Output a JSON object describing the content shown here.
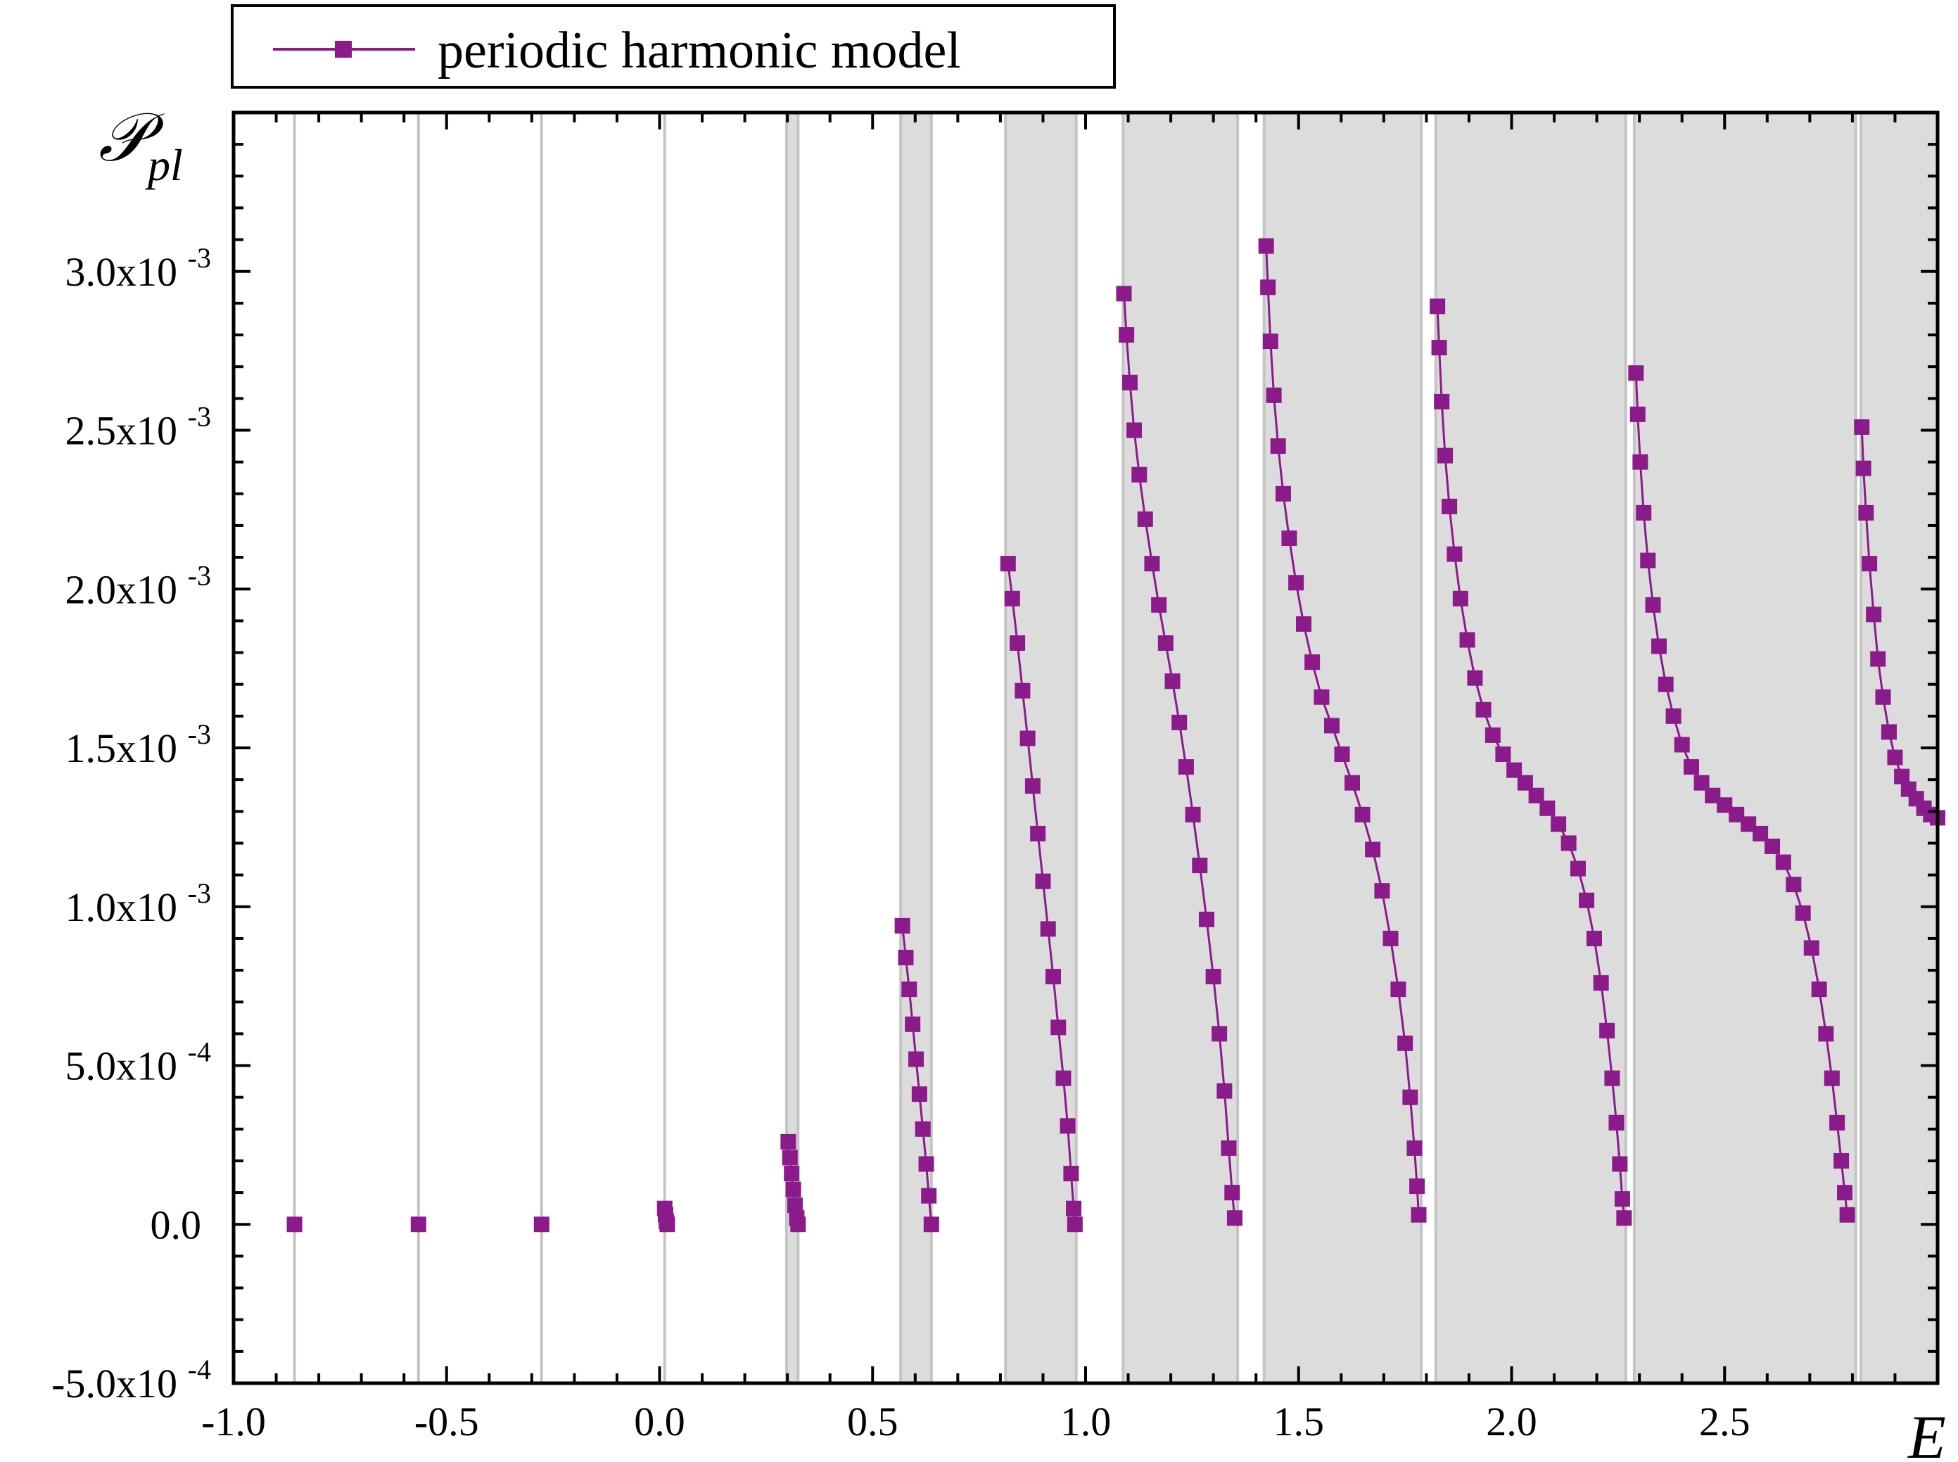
{
  "chart_data": {
    "type": "scatter",
    "title": "",
    "xlabel": "E",
    "ylabel": "𝒫",
    "ylabel_subscript": "pl",
    "xlim": [
      -1.0,
      3.0
    ],
    "ylim": [
      -0.0005,
      0.0035
    ],
    "grid": false,
    "legend_position": "top-left",
    "x_ticks": [
      {
        "v": -1.0,
        "label": "-1.0"
      },
      {
        "v": -0.5,
        "label": "-0.5"
      },
      {
        "v": 0.0,
        "label": "0.0"
      },
      {
        "v": 0.5,
        "label": "0.5"
      },
      {
        "v": 1.0,
        "label": "1.0"
      },
      {
        "v": 1.5,
        "label": "1.5"
      },
      {
        "v": 2.0,
        "label": "2.0"
      },
      {
        "v": 2.5,
        "label": "2.5"
      }
    ],
    "y_ticks": [
      {
        "v": -0.0005,
        "mant": "-5.0x10",
        "exp": "-4"
      },
      {
        "v": 0.0,
        "mant": "0.0",
        "exp": ""
      },
      {
        "v": 0.0005,
        "mant": "5.0x10",
        "exp": "-4"
      },
      {
        "v": 0.001,
        "mant": "1.0x10",
        "exp": "-3"
      },
      {
        "v": 0.0015,
        "mant": "1.5x10",
        "exp": "-3"
      },
      {
        "v": 0.002,
        "mant": "2.0x10",
        "exp": "-3"
      },
      {
        "v": 0.0025,
        "mant": "2.5x10",
        "exp": "-3"
      },
      {
        "v": 0.003,
        "mant": "3.0x10",
        "exp": "-3"
      }
    ],
    "bands": [
      [
        -0.857,
        -0.857
      ],
      [
        -0.566,
        -0.566
      ],
      [
        -0.277,
        -0.277
      ],
      [
        0.012,
        0.012
      ],
      [
        0.298,
        0.325
      ],
      [
        0.566,
        0.638
      ],
      [
        0.812,
        0.978
      ],
      [
        1.088,
        1.357
      ],
      [
        1.419,
        1.788
      ],
      [
        1.822,
        2.268
      ],
      [
        2.288,
        2.808
      ],
      [
        2.82,
        3.0
      ]
    ],
    "series": [
      {
        "name": "periodic harmonic model",
        "color": "#8B1A8B",
        "marker": "square",
        "segments": [
          {
            "points": [
              [
                -0.857,
                0.0
              ]
            ]
          },
          {
            "points": [
              [
                -0.566,
                0.0
              ]
            ]
          },
          {
            "points": [
              [
                -0.277,
                0.0
              ]
            ]
          },
          {
            "points": [
              [
                0.012,
                5e-05
              ],
              [
                0.014,
                3e-05
              ],
              [
                0.016,
                1e-05
              ],
              [
                0.018,
                0.0
              ]
            ]
          },
          {
            "points": [
              [
                0.302,
                0.00026
              ],
              [
                0.306,
                0.00021
              ],
              [
                0.31,
                0.00016
              ],
              [
                0.314,
                0.00011
              ],
              [
                0.318,
                6e-05
              ],
              [
                0.322,
                2e-05
              ],
              [
                0.325,
                0.0
              ]
            ]
          },
          {
            "points": [
              [
                0.57,
                0.00094
              ],
              [
                0.578,
                0.00084
              ],
              [
                0.586,
                0.00074
              ],
              [
                0.594,
                0.00063
              ],
              [
                0.602,
                0.00052
              ],
              [
                0.61,
                0.00041
              ],
              [
                0.618,
                0.0003
              ],
              [
                0.626,
                0.00019
              ],
              [
                0.632,
                9e-05
              ],
              [
                0.638,
                0.0
              ]
            ]
          },
          {
            "points": [
              [
                0.818,
                0.00208
              ],
              [
                0.828,
                0.00197
              ],
              [
                0.84,
                0.00183
              ],
              [
                0.852,
                0.00168
              ],
              [
                0.864,
                0.00153
              ],
              [
                0.876,
                0.00138
              ],
              [
                0.888,
                0.00123
              ],
              [
                0.9,
                0.00108
              ],
              [
                0.912,
                0.00093
              ],
              [
                0.924,
                0.00078
              ],
              [
                0.936,
                0.00062
              ],
              [
                0.948,
                0.00046
              ],
              [
                0.958,
                0.00031
              ],
              [
                0.966,
                0.00016
              ],
              [
                0.972,
                5e-05
              ],
              [
                0.975,
                0.0
              ]
            ]
          },
          {
            "points": [
              [
                1.09,
                0.00293
              ],
              [
                1.096,
                0.0028
              ],
              [
                1.104,
                0.00265
              ],
              [
                1.114,
                0.0025
              ],
              [
                1.126,
                0.00236
              ],
              [
                1.14,
                0.00222
              ],
              [
                1.156,
                0.00208
              ],
              [
                1.172,
                0.00195
              ],
              [
                1.188,
                0.00183
              ],
              [
                1.204,
                0.00171
              ],
              [
                1.22,
                0.00158
              ],
              [
                1.236,
                0.00144
              ],
              [
                1.252,
                0.00129
              ],
              [
                1.268,
                0.00113
              ],
              [
                1.284,
                0.00096
              ],
              [
                1.3,
                0.00078
              ],
              [
                1.314,
                0.0006
              ],
              [
                1.326,
                0.00042
              ],
              [
                1.336,
                0.00024
              ],
              [
                1.344,
                0.0001
              ],
              [
                1.35,
                2e-05
              ]
            ]
          },
          {
            "points": [
              [
                1.424,
                0.00308
              ],
              [
                1.428,
                0.00295
              ],
              [
                1.434,
                0.00278
              ],
              [
                1.442,
                0.00261
              ],
              [
                1.452,
                0.00245
              ],
              [
                1.464,
                0.0023
              ],
              [
                1.478,
                0.00216
              ],
              [
                1.494,
                0.00202
              ],
              [
                1.512,
                0.00189
              ],
              [
                1.532,
                0.00177
              ],
              [
                1.554,
                0.00166
              ],
              [
                1.578,
                0.00157
              ],
              [
                1.602,
                0.00148
              ],
              [
                1.626,
                0.00139
              ],
              [
                1.65,
                0.00129
              ],
              [
                1.674,
                0.00118
              ],
              [
                1.696,
                0.00105
              ],
              [
                1.716,
                0.0009
              ],
              [
                1.734,
                0.00074
              ],
              [
                1.75,
                0.00057
              ],
              [
                1.762,
                0.0004
              ],
              [
                1.772,
                0.00024
              ],
              [
                1.778,
                0.00012
              ],
              [
                1.782,
                3e-05
              ]
            ]
          },
          {
            "points": [
              [
                1.826,
                0.00289
              ],
              [
                1.83,
                0.00276
              ],
              [
                1.836,
                0.00259
              ],
              [
                1.844,
                0.00242
              ],
              [
                1.854,
                0.00226
              ],
              [
                1.866,
                0.00211
              ],
              [
                1.88,
                0.00197
              ],
              [
                1.896,
                0.00184
              ],
              [
                1.914,
                0.00172
              ],
              [
                1.934,
                0.00162
              ],
              [
                1.956,
                0.00154
              ],
              [
                1.98,
                0.00148
              ],
              [
                2.006,
                0.00143
              ],
              [
                2.032,
                0.00139
              ],
              [
                2.058,
                0.00135
              ],
              [
                2.084,
                0.00131
              ],
              [
                2.11,
                0.00126
              ],
              [
                2.134,
                0.0012
              ],
              [
                2.156,
                0.00112
              ],
              [
                2.176,
                0.00102
              ],
              [
                2.194,
                0.0009
              ],
              [
                2.21,
                0.00076
              ],
              [
                2.224,
                0.00061
              ],
              [
                2.236,
                0.00046
              ],
              [
                2.246,
                0.00032
              ],
              [
                2.254,
                0.00019
              ],
              [
                2.26,
                8e-05
              ],
              [
                2.264,
                2e-05
              ]
            ]
          },
          {
            "points": [
              [
                2.292,
                0.00268
              ],
              [
                2.296,
                0.00255
              ],
              [
                2.302,
                0.0024
              ],
              [
                2.31,
                0.00224
              ],
              [
                2.32,
                0.00209
              ],
              [
                2.332,
                0.00195
              ],
              [
                2.346,
                0.00182
              ],
              [
                2.362,
                0.0017
              ],
              [
                2.38,
                0.0016
              ],
              [
                2.4,
                0.00151
              ],
              [
                2.422,
                0.00144
              ],
              [
                2.446,
                0.00139
              ],
              [
                2.472,
                0.00135
              ],
              [
                2.5,
                0.00132
              ],
              [
                2.528,
                0.00129
              ],
              [
                2.556,
                0.00126
              ],
              [
                2.584,
                0.00123
              ],
              [
                2.612,
                0.00119
              ],
              [
                2.638,
                0.00114
              ],
              [
                2.662,
                0.00107
              ],
              [
                2.684,
                0.00098
              ],
              [
                2.704,
                0.00087
              ],
              [
                2.722,
                0.00074
              ],
              [
                2.738,
                0.0006
              ],
              [
                2.752,
                0.00046
              ],
              [
                2.764,
                0.00032
              ],
              [
                2.774,
                0.0002
              ],
              [
                2.782,
                0.0001
              ],
              [
                2.788,
                3e-05
              ]
            ]
          },
          {
            "points": [
              [
                2.822,
                0.00251
              ],
              [
                2.826,
                0.00238
              ],
              [
                2.832,
                0.00224
              ],
              [
                2.84,
                0.00208
              ],
              [
                2.85,
                0.00192
              ],
              [
                2.86,
                0.00178
              ],
              [
                2.872,
                0.00166
              ],
              [
                2.886,
                0.00155
              ],
              [
                2.9,
                0.00147
              ],
              [
                2.916,
                0.00141
              ],
              [
                2.932,
                0.00137
              ],
              [
                2.95,
                0.00134
              ],
              [
                2.968,
                0.00131
              ],
              [
                2.984,
                0.00129
              ],
              [
                3.0,
                0.00128
              ]
            ]
          }
        ]
      }
    ]
  }
}
